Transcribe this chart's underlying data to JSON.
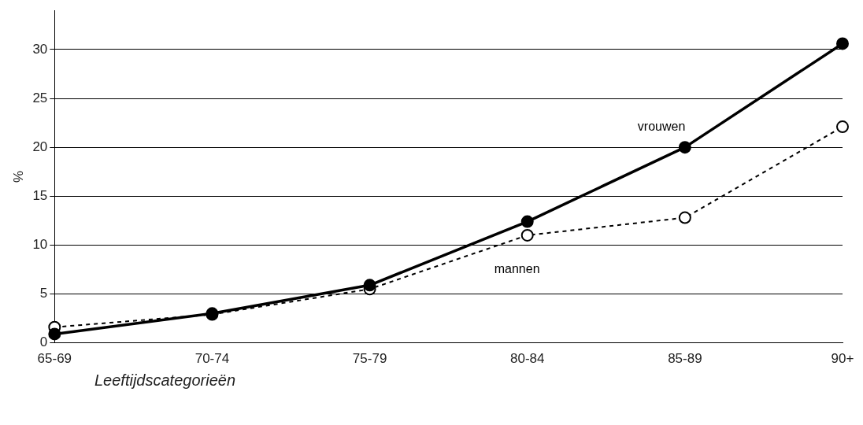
{
  "chart_data": {
    "type": "line",
    "xlabel": "Leeftijdscategorieën",
    "ylabel": "%",
    "categories": [
      "65-69",
      "70-74",
      "75-79",
      "80-84",
      "85-89",
      "90+"
    ],
    "series": [
      {
        "name": "vrouwen",
        "color": "#000000",
        "values": [
          0.9,
          3.0,
          5.9,
          12.4,
          20.0,
          30.6
        ],
        "line_style": "solid",
        "marker": "circle"
      },
      {
        "name": "mannen",
        "color": "#000000",
        "values": [
          1.6,
          2.9,
          5.5,
          11.0,
          12.8,
          22.1
        ],
        "line_style": "dashed",
        "marker": "circle"
      }
    ],
    "ylim": [
      0,
      34
    ],
    "yticks": [
      0,
      5,
      10,
      15,
      20,
      25,
      30
    ],
    "grid": "y",
    "legend": false
  }
}
